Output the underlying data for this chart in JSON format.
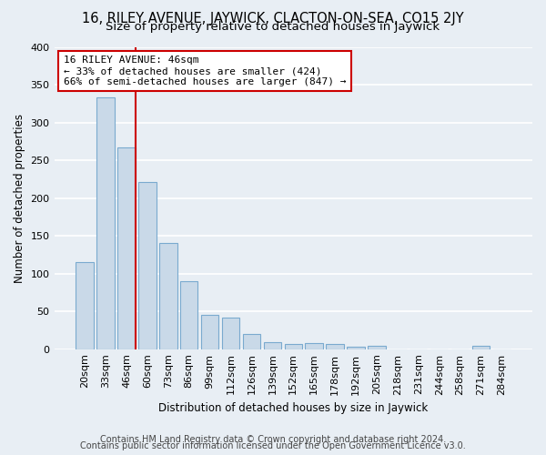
{
  "title": "16, RILEY AVENUE, JAYWICK, CLACTON-ON-SEA, CO15 2JY",
  "subtitle": "Size of property relative to detached houses in Jaywick",
  "xlabel": "Distribution of detached houses by size in Jaywick",
  "ylabel": "Number of detached properties",
  "categories": [
    "20sqm",
    "33sqm",
    "46sqm",
    "60sqm",
    "73sqm",
    "86sqm",
    "99sqm",
    "112sqm",
    "126sqm",
    "139sqm",
    "152sqm",
    "165sqm",
    "178sqm",
    "192sqm",
    "205sqm",
    "218sqm",
    "231sqm",
    "244sqm",
    "258sqm",
    "271sqm",
    "284sqm"
  ],
  "values": [
    115,
    333,
    267,
    221,
    141,
    90,
    45,
    42,
    20,
    9,
    7,
    8,
    7,
    3,
    4,
    0,
    0,
    0,
    0,
    4,
    0
  ],
  "bar_color": "#c9d9e8",
  "bar_edge_color": "#7aaacf",
  "highlight_line_color": "#cc0000",
  "highlight_line_index": 2,
  "annotation_text": "16 RILEY AVENUE: 46sqm\n← 33% of detached houses are smaller (424)\n66% of semi-detached houses are larger (847) →",
  "annotation_box_color": "#ffffff",
  "annotation_box_edge_color": "#cc0000",
  "background_color": "#e8eef4",
  "plot_background_color": "#e8eef4",
  "grid_color": "#ffffff",
  "footer_line1": "Contains HM Land Registry data © Crown copyright and database right 2024.",
  "footer_line2": "Contains public sector information licensed under the Open Government Licence v3.0.",
  "ylim": [
    0,
    400
  ],
  "yticks": [
    0,
    50,
    100,
    150,
    200,
    250,
    300,
    350,
    400
  ],
  "title_fontsize": 10.5,
  "subtitle_fontsize": 9.5,
  "axis_label_fontsize": 8.5,
  "tick_fontsize": 8,
  "annotation_fontsize": 8,
  "footer_fontsize": 7
}
